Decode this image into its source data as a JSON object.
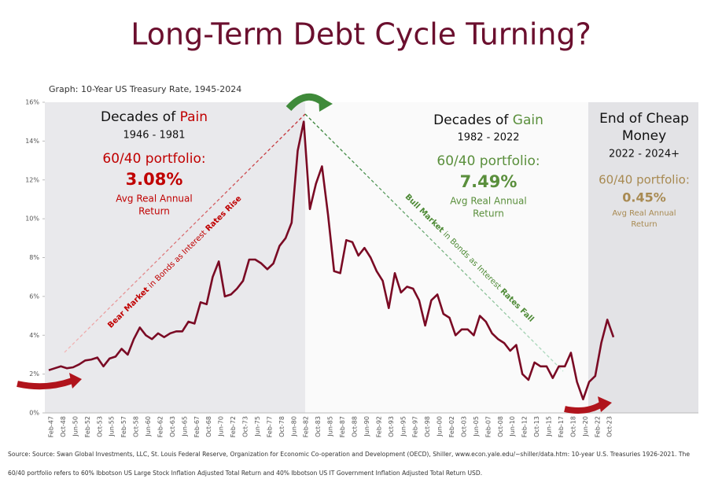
{
  "chart_data": {
    "type": "line",
    "title": "Long-Term Debt Cycle Turning?",
    "subtitle": "Graph: 10-Year US Treasury Rate, 1945-2024",
    "color": "#7a0a24",
    "categories": [
      "Feb-47",
      null,
      "Oct-48",
      null,
      "Jun-50",
      null,
      "Feb-52",
      null,
      "Oct-53",
      null,
      "Jun-55",
      null,
      "Feb-57",
      null,
      "Oct-58",
      null,
      "Jun-60",
      null,
      "Feb-62",
      null,
      "Oct-63",
      null,
      "Jun-65",
      null,
      "Feb-67",
      null,
      "Oct-68",
      null,
      "Jun-70",
      null,
      "Feb-72",
      null,
      "Oct-73",
      null,
      "Jun-75",
      null,
      "Feb-77",
      null,
      "Oct-78",
      null,
      "Jun-80",
      null,
      "Feb-82",
      null,
      "Oct-83",
      null,
      "Jun-85",
      null,
      "Feb-87",
      null,
      "Oct-88",
      null,
      "Jun-90",
      null,
      "Feb-92",
      null,
      "Oct-93",
      null,
      "Jun-95",
      null,
      "Feb-97",
      null,
      "Oct-98",
      null,
      "Jun-00",
      null,
      "Feb-02",
      null,
      "Oct-03",
      null,
      "Jun-05",
      null,
      "Feb-07",
      null,
      "Oct-08",
      null,
      "Jun-10",
      null,
      "Feb-12",
      null,
      "Oct-13",
      null,
      "Jun-15",
      null,
      "Feb-17",
      null,
      "Oct-18",
      null,
      "Jun-20",
      null,
      "Feb-22",
      null,
      "Oct-23",
      null
    ],
    "values": [
      2.2,
      2.3,
      2.4,
      2.3,
      2.35,
      2.5,
      2.7,
      2.75,
      2.85,
      2.4,
      2.8,
      2.9,
      3.3,
      3.0,
      3.8,
      4.4,
      4.0,
      3.8,
      4.1,
      3.9,
      4.1,
      4.2,
      4.2,
      4.7,
      4.6,
      5.7,
      5.6,
      7.0,
      7.8,
      6.0,
      6.1,
      6.4,
      6.8,
      7.9,
      7.9,
      7.7,
      7.4,
      7.7,
      8.6,
      9.0,
      9.8,
      13.5,
      15.0,
      10.5,
      11.8,
      12.7,
      10.2,
      7.3,
      7.2,
      8.9,
      8.8,
      8.1,
      8.5,
      8.0,
      7.3,
      6.8,
      5.4,
      7.2,
      6.2,
      6.5,
      6.4,
      5.8,
      4.5,
      5.8,
      6.1,
      5.1,
      4.9,
      4.0,
      4.3,
      4.3,
      4.0,
      5.0,
      4.7,
      4.1,
      3.8,
      3.6,
      3.2,
      3.5,
      2.0,
      1.7,
      2.6,
      2.4,
      2.4,
      1.8,
      2.4,
      2.4,
      3.1,
      1.6,
      0.7,
      1.6,
      1.9,
      3.6,
      4.8,
      3.9
    ],
    "ylim": [
      0,
      16
    ],
    "yticks": [
      {
        "value": 0,
        "label": "0%"
      },
      {
        "value": 2,
        "label": "2%"
      },
      {
        "value": 4,
        "label": "4%"
      },
      {
        "value": 6,
        "label": "6%"
      },
      {
        "value": 8,
        "label": "8%"
      },
      {
        "value": 10,
        "label": "10%"
      },
      {
        "value": 12,
        "label": "12%"
      },
      {
        "value": 14,
        "label": "14%"
      },
      {
        "value": 16,
        "label": "16%"
      }
    ],
    "annotations": {
      "pain": {
        "title": [
          "Decades of ",
          "Pain"
        ],
        "years": "1946 - 1981",
        "portfolio": "60/40 portfolio:",
        "return": "3.08%",
        "caption": [
          "Avg Real Annual",
          "Return"
        ]
      },
      "gain": {
        "title": [
          "Decades of ",
          "Gain"
        ],
        "years": "1982 - 2022",
        "portfolio": "60/40 portfolio:",
        "return": "7.49%",
        "caption": [
          "Avg Real Annual",
          "Return"
        ]
      },
      "cheap": {
        "title": [
          "End of Cheap",
          "Money"
        ],
        "years": "2022 - 2024+",
        "portfolio": "60/40 portfolio:",
        "return": "0.45%",
        "caption": [
          "Avg Real Annual",
          "Return"
        ]
      },
      "bear": [
        "Bear Market",
        " in Bonds as Interest ",
        "Rates Rise"
      ],
      "bull": [
        "Bull Market",
        " in Bonds as Interest ",
        "Rates Fall"
      ]
    },
    "notes": [
      "Source: Source: Swan Global Investments, LLC, St. Louis Federal Reserve, Organization for Economic Co-operation and Development (OECD), Shiller, www.econ.yale.edu/~shiller/data.htm: 10-year U.S. Treasuries 1926-2021. The",
      "60/40 portfolio refers to 60% Ibbotson US Large Stock Inflation Adjusted Total Return and 40% Ibbotson US IT Government Inflation Adjusted Total Return USD."
    ]
  }
}
